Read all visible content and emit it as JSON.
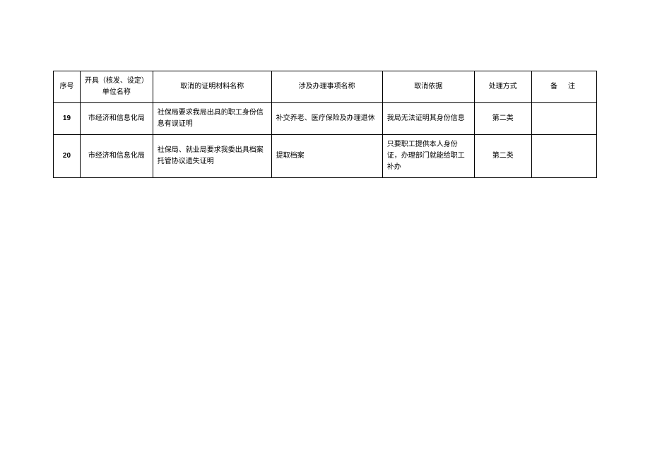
{
  "table": {
    "headers": {
      "seq": "序号",
      "unit": "开具（核发、设定）单位名称",
      "material": "取消的证明材料名称",
      "matter": "涉及办理事项名称",
      "basis": "取消依据",
      "method": "处理方式",
      "remark": "备注"
    },
    "rows": [
      {
        "seq": "19",
        "unit": "市经济和信息化局",
        "material": "社保局要求我局出具的职工身份信息有误证明",
        "matter": "补交养老、医疗保险及办理退休",
        "basis": "我局无法证明其身份信息",
        "method": "第二类",
        "remark": ""
      },
      {
        "seq": "20",
        "unit": "市经济和信息化局",
        "material": "社保局、就业局要求我委出具档案托管协议遗失证明",
        "matter": "提取档案",
        "basis": "只要职工提供本人身份证，办理部门就能给职工补办",
        "method": "第二类",
        "remark": ""
      }
    ],
    "styling": {
      "border_color": "#000000",
      "background_color": "#ffffff",
      "text_color": "#000000",
      "font_size": 10,
      "column_widths": {
        "seq": 35,
        "unit": 95,
        "material": 155,
        "matter": 145,
        "basis": 120,
        "method": 75,
        "remark": 85
      }
    }
  }
}
